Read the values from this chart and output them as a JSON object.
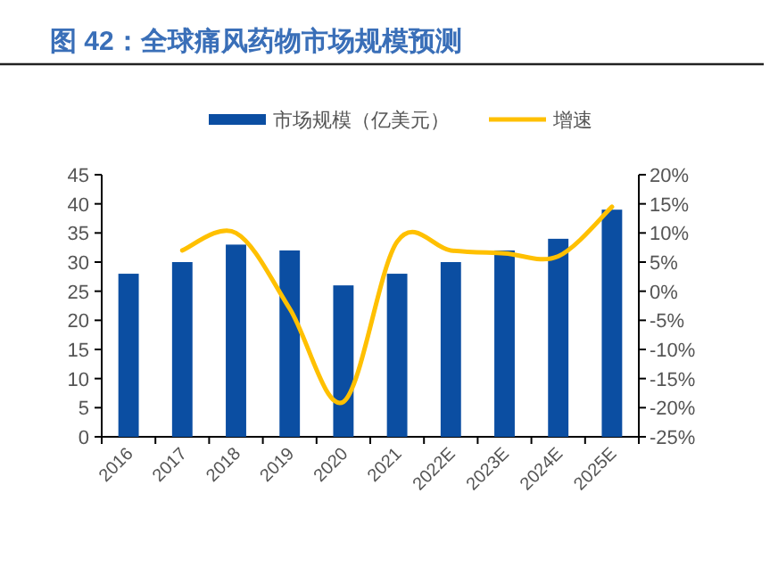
{
  "chart_data": {
    "type": "bar",
    "title": "图 42：全球痛风药物市场规模预测",
    "categories": [
      "2016",
      "2017",
      "2018",
      "2019",
      "2020",
      "2021",
      "2022E",
      "2023E",
      "2024E",
      "2025E"
    ],
    "series": [
      {
        "name": "市场规模（亿美元）",
        "color": "#0b4ea2",
        "values": [
          28,
          30,
          33,
          32,
          26,
          28,
          30,
          32,
          34,
          39
        ]
      },
      {
        "name": "增速",
        "type": "line",
        "axis": "y2",
        "color": "#ffc000",
        "values": [
          null,
          7,
          10,
          -3,
          -19,
          8.5,
          7,
          6.5,
          6,
          14.5
        ]
      }
    ],
    "ylim": [
      0,
      45
    ],
    "yticks": [
      0,
      5,
      10,
      15,
      20,
      25,
      30,
      35,
      40,
      45
    ],
    "y2lim": [
      -25,
      20
    ],
    "y2ticks": [
      {
        "value": -25,
        "label": "-25%"
      },
      {
        "value": -20,
        "label": "-20%"
      },
      {
        "value": -15,
        "label": "-15%"
      },
      {
        "value": -10,
        "label": "-10%"
      },
      {
        "value": -5,
        "label": "-5%"
      },
      {
        "value": 0,
        "label": "0%"
      },
      {
        "value": 5,
        "label": "5%"
      },
      {
        "value": 10,
        "label": "10%"
      },
      {
        "value": 15,
        "label": "15%"
      },
      {
        "value": 20,
        "label": "20%"
      }
    ],
    "legend": "top",
    "marker": "none"
  }
}
